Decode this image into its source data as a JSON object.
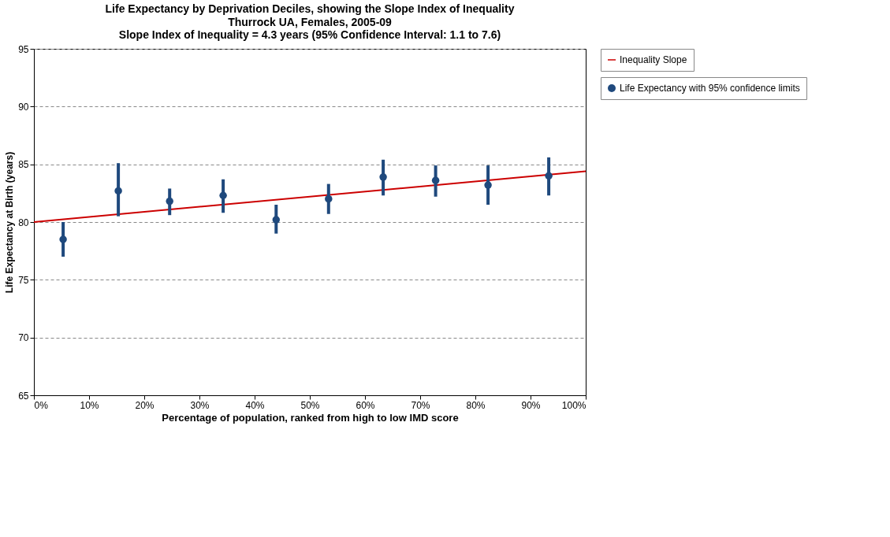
{
  "chart_data": {
    "type": "scatter",
    "title": "Life Expectancy by Deprivation Deciles, showing the Slope Index of Inequality",
    "subtitle": "Thurrock UA, Females, 2005-09\nSlope Index of Inequality = 4.3 years (95% Confidence Interval: 1.1 to 7.6)",
    "xlabel": "Percentage of population, ranked from high to low IMD score",
    "ylabel": "Life Expectancy at Birth (years)",
    "xlim": [
      0,
      100
    ],
    "xticks": [
      {
        "value": 0,
        "label": "0%"
      },
      {
        "value": 10,
        "label": "10%"
      },
      {
        "value": 20,
        "label": "20%"
      },
      {
        "value": 30,
        "label": "30%"
      },
      {
        "value": 40,
        "label": "40%"
      },
      {
        "value": 50,
        "label": "50%"
      },
      {
        "value": 60,
        "label": "60%"
      },
      {
        "value": 70,
        "label": "70%"
      },
      {
        "value": 80,
        "label": "80%"
      },
      {
        "value": 90,
        "label": "90%"
      },
      {
        "value": 100,
        "label": "100%"
      }
    ],
    "ylim": [
      65,
      95
    ],
    "yticks": [
      65,
      70,
      75,
      80,
      85,
      90,
      95
    ],
    "grid": "y",
    "legend": "right",
    "series": [
      {
        "name": "Inequality Slope",
        "type": "line",
        "color": "#cc0000",
        "x": [
          0,
          100
        ],
        "values": [
          80.0,
          84.4
        ]
      },
      {
        "name": "Life Expectancy with 95% confidence limits",
        "type": "scatter",
        "marker": "circle",
        "color": "#1f497d",
        "x": [
          5.3,
          15.3,
          24.6,
          34.3,
          43.9,
          53.4,
          63.3,
          72.8,
          82.3,
          93.3
        ],
        "values": [
          78.5,
          82.7,
          81.8,
          82.3,
          80.2,
          82.0,
          83.9,
          83.6,
          83.2,
          84.0
        ],
        "errors": [
          [
            77.0,
            80.0
          ],
          [
            80.5,
            85.1
          ],
          [
            80.6,
            82.9
          ],
          [
            80.8,
            83.7
          ],
          [
            79.0,
            81.5
          ],
          [
            80.7,
            83.3
          ],
          [
            82.3,
            85.4
          ],
          [
            82.2,
            84.9
          ],
          [
            81.5,
            84.9
          ],
          [
            82.3,
            85.6
          ]
        ]
      }
    ]
  }
}
